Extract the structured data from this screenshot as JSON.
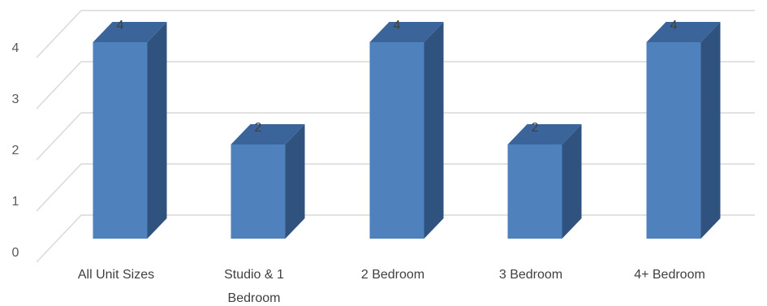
{
  "chart_data": {
    "type": "bar",
    "style": "3d-column",
    "categories": [
      [
        "All Unit Sizes"
      ],
      [
        "Studio & 1",
        "Bedroom"
      ],
      [
        "2 Bedroom"
      ],
      [
        "3 Bedroom"
      ],
      [
        "4+ Bedroom"
      ]
    ],
    "values": [
      4,
      2,
      4,
      2,
      4
    ],
    "data_labels": [
      "4",
      "2",
      "4",
      "2",
      "4"
    ],
    "y_ticks": [
      "0",
      "1",
      "2",
      "3",
      "4"
    ],
    "ylim": [
      0,
      4
    ],
    "grid": true,
    "legend": "none",
    "title": "",
    "xlabel": "",
    "ylabel": "",
    "colors": {
      "front": "#4f81bd",
      "side": "#2f527f",
      "top": "#3a649a",
      "grid": "#d9d9d9"
    }
  }
}
